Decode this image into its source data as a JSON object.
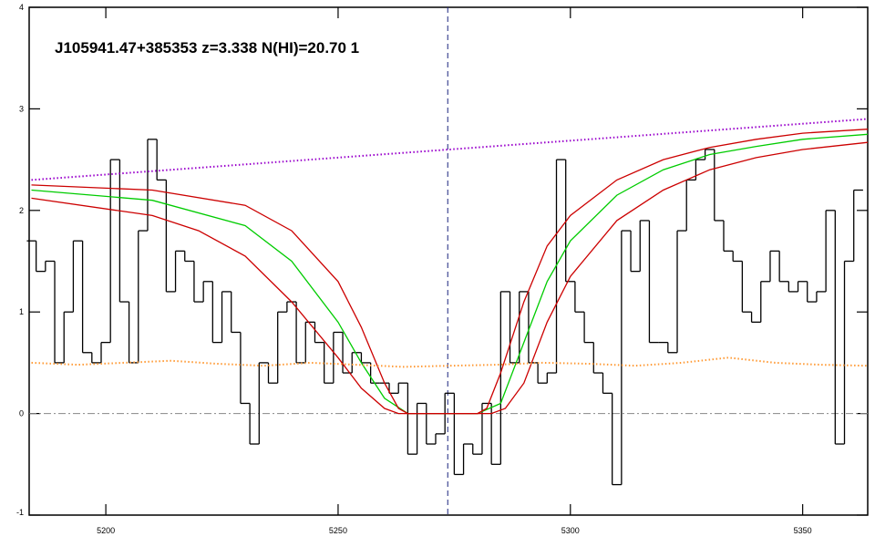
{
  "chart_data": {
    "type": "line",
    "title": "J105941.47+385353 z=3.338 N(HI)=20.70 1",
    "xlim": [
      5183.5,
      5364
    ],
    "ylim": [
      -1,
      4
    ],
    "xticks": [
      5200,
      5250,
      5300,
      5350
    ],
    "yticks": [
      -1,
      0,
      1,
      2,
      3,
      4
    ],
    "zero_line": 0,
    "marker_x": 5273.6,
    "series": [
      {
        "color": "#000000",
        "style": "step",
        "x": [
          5184,
          5186,
          5188,
          5190,
          5192,
          5194,
          5196,
          5198,
          5200,
          5202,
          5204,
          5206,
          5208,
          5210,
          5212,
          5214,
          5216,
          5218,
          5220,
          5222,
          5224,
          5226,
          5228,
          5230,
          5232,
          5234,
          5236,
          5238,
          5240,
          5242,
          5244,
          5246,
          5248,
          5250,
          5252,
          5254,
          5256,
          5258,
          5260,
          5262,
          5264,
          5266,
          5268,
          5270,
          5272,
          5274,
          5276,
          5278,
          5280,
          5282,
          5284,
          5286,
          5288,
          5290,
          5292,
          5294,
          5296,
          5298,
          5300,
          5302,
          5304,
          5306,
          5308,
          5310,
          5312,
          5314,
          5316,
          5318,
          5320,
          5322,
          5324,
          5326,
          5328,
          5330,
          5332,
          5334,
          5336,
          5338,
          5340,
          5342,
          5344,
          5346,
          5348,
          5350,
          5352,
          5354,
          5356,
          5358,
          5360,
          5362
        ],
        "values": [
          1.7,
          1.4,
          1.5,
          0.5,
          1.0,
          1.7,
          0.6,
          0.5,
          0.7,
          2.5,
          1.1,
          0.5,
          1.8,
          2.7,
          2.3,
          1.2,
          1.6,
          1.5,
          1.1,
          1.3,
          0.7,
          1.2,
          0.8,
          0.1,
          -0.3,
          0.5,
          0.3,
          1.0,
          1.1,
          0.5,
          0.9,
          0.7,
          0.3,
          0.8,
          0.4,
          0.6,
          0.5,
          0.3,
          0.3,
          0.2,
          0.3,
          -0.4,
          0.1,
          -0.3,
          -0.2,
          0.2,
          -0.6,
          -0.3,
          -0.4,
          0.1,
          -0.5,
          1.2,
          0.5,
          1.2,
          0.5,
          0.3,
          0.4,
          2.5,
          1.3,
          1.0,
          0.7,
          0.4,
          0.2,
          -0.7,
          1.8,
          1.4,
          1.9,
          0.7,
          0.7,
          0.6,
          1.8,
          2.3,
          2.5,
          2.6,
          1.9,
          1.6,
          1.5,
          1.0,
          0.9,
          1.3,
          1.6,
          1.3,
          1.2,
          1.3,
          1.1,
          1.2,
          2.0,
          -0.3,
          1.5,
          2.2
        ]
      },
      {
        "color": "#00cc00",
        "style": "solid",
        "x": [
          5184,
          5210,
          5230,
          5240,
          5250,
          5255,
          5260,
          5265,
          5280,
          5285,
          5290,
          5295,
          5300,
          5310,
          5320,
          5330,
          5340,
          5350,
          5364
        ],
        "values": [
          2.2,
          2.1,
          1.85,
          1.5,
          0.9,
          0.5,
          0.15,
          0.0,
          0.0,
          0.1,
          0.7,
          1.3,
          1.7,
          2.15,
          2.4,
          2.55,
          2.63,
          2.7,
          2.75
        ]
      },
      {
        "color": "#cc0000",
        "style": "solid",
        "x": [
          5184,
          5210,
          5230,
          5240,
          5250,
          5255,
          5260,
          5263,
          5265,
          5280,
          5282,
          5285,
          5290,
          5295,
          5300,
          5310,
          5320,
          5330,
          5340,
          5350,
          5364
        ],
        "values": [
          2.25,
          2.2,
          2.05,
          1.8,
          1.3,
          0.85,
          0.3,
          0.05,
          0.0,
          0.0,
          0.05,
          0.4,
          1.1,
          1.65,
          1.95,
          2.3,
          2.5,
          2.62,
          2.7,
          2.76,
          2.8
        ]
      },
      {
        "color": "#cc0000",
        "style": "solid",
        "x": [
          5184,
          5210,
          5220,
          5230,
          5240,
          5250,
          5255,
          5260,
          5263,
          5283,
          5286,
          5290,
          5295,
          5300,
          5310,
          5320,
          5330,
          5340,
          5350,
          5364
        ],
        "values": [
          2.12,
          1.95,
          1.8,
          1.55,
          1.1,
          0.55,
          0.25,
          0.05,
          0.0,
          0.0,
          0.05,
          0.3,
          0.9,
          1.35,
          1.9,
          2.2,
          2.4,
          2.52,
          2.6,
          2.67
        ]
      },
      {
        "color": "#9900cc",
        "style": "dotted",
        "x": [
          5184,
          5364
        ],
        "values": [
          2.3,
          2.9
        ]
      },
      {
        "color": "#ff9933",
        "style": "dotted",
        "x": [
          5184,
          5194,
          5204,
          5214,
          5224,
          5234,
          5244,
          5254,
          5264,
          5274,
          5284,
          5294,
          5304,
          5314,
          5324,
          5334,
          5344,
          5354,
          5364
        ],
        "values": [
          0.5,
          0.48,
          0.5,
          0.52,
          0.49,
          0.47,
          0.5,
          0.48,
          0.46,
          0.47,
          0.48,
          0.5,
          0.49,
          0.47,
          0.5,
          0.55,
          0.5,
          0.48,
          0.47
        ]
      }
    ]
  }
}
